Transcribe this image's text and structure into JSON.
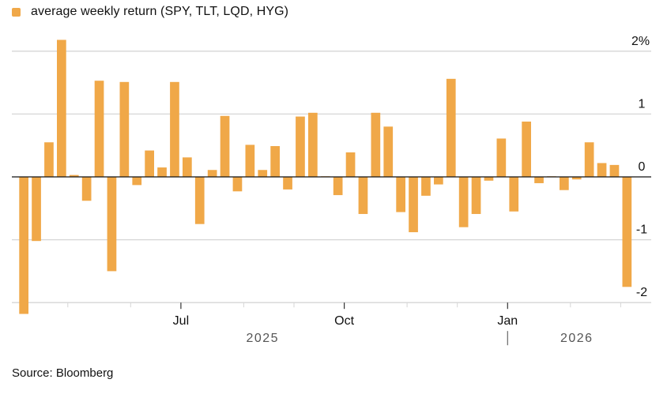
{
  "legend": {
    "label": "average weekly return (SPY, TLT, LQD, HYG)",
    "color": "#F0A848"
  },
  "source": "Source: Bloomberg",
  "chart_data": {
    "type": "bar",
    "title": "",
    "xlabel": "",
    "ylabel": "",
    "unit": "%",
    "ylim": [
      -2,
      2
    ],
    "yticks": [
      {
        "value": 2,
        "label": "2%"
      },
      {
        "value": 1,
        "label": "1"
      },
      {
        "value": 0,
        "label": "0"
      },
      {
        "value": -1,
        "label": "-1"
      },
      {
        "value": -2,
        "label": "-2"
      }
    ],
    "grid": true,
    "legend_position": "top-left",
    "bar_color": "#F0A848",
    "x_month_ticks": [
      {
        "bar_index": 12.5,
        "label": "Jul",
        "major": true
      },
      {
        "bar_index": 25.5,
        "label": "Oct",
        "major": true
      },
      {
        "bar_index": 38.5,
        "label": "Jan",
        "major": true
      }
    ],
    "x_minor_tick_bar_indices": [
      3.5,
      8.5,
      17.5,
      21.5,
      30.5,
      34.5,
      43.5,
      47.5
    ],
    "year_labels": [
      {
        "label": "2025",
        "bar_index": 19
      },
      {
        "label": "2026",
        "bar_index": 44
      }
    ],
    "year_divider_bar_index": 38.5,
    "series": [
      {
        "name": "average weekly return (SPY, TLT, LQD, HYG)",
        "values": [
          -2.18,
          -1.02,
          0.55,
          2.18,
          0.03,
          -0.38,
          1.53,
          -1.5,
          1.51,
          -0.13,
          0.42,
          0.15,
          1.51,
          0.31,
          -0.75,
          0.11,
          0.97,
          -0.23,
          0.51,
          0.11,
          0.49,
          -0.2,
          0.96,
          1.02,
          0.01,
          -0.29,
          0.39,
          -0.59,
          1.02,
          0.8,
          -0.56,
          -0.88,
          -0.3,
          -0.12,
          1.56,
          -0.8,
          -0.59,
          -0.06,
          0.61,
          -0.55,
          0.88,
          -0.1,
          0.01,
          -0.21,
          -0.04,
          0.55,
          0.22,
          0.19,
          -1.75
        ]
      }
    ]
  }
}
